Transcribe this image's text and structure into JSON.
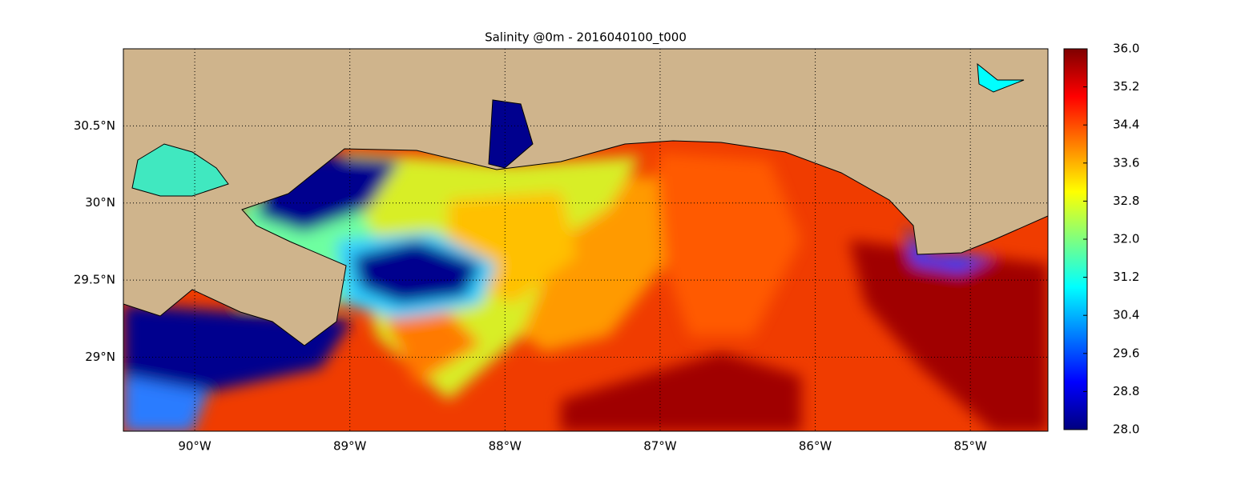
{
  "chart_data": {
    "type": "map",
    "title": "Salinity @0m - 2016040100_t000",
    "xlim": [
      -90.46,
      -84.5
    ],
    "ylim": [
      28.52,
      31.0
    ],
    "xticks": [
      {
        "value": -90,
        "label": "90°W"
      },
      {
        "value": -89,
        "label": "89°W"
      },
      {
        "value": -88,
        "label": "88°W"
      },
      {
        "value": -87,
        "label": "87°W"
      },
      {
        "value": -86,
        "label": "86°W"
      },
      {
        "value": -85,
        "label": "85°W"
      }
    ],
    "yticks": [
      {
        "value": 29,
        "label": "29°N"
      },
      {
        "value": 29.5,
        "label": "29.5°N"
      },
      {
        "value": 30,
        "label": "30°N"
      },
      {
        "value": 30.5,
        "label": "30.5°N"
      }
    ],
    "grid": true,
    "colorbar": {
      "colormap": "jet",
      "lim": [
        28,
        36
      ],
      "ticks": [
        {
          "value": 28,
          "label": "28.0"
        },
        {
          "value": 28.8,
          "label": "28.8"
        },
        {
          "value": 29.6,
          "label": "29.6"
        },
        {
          "value": 30.4,
          "label": "30.4"
        },
        {
          "value": 31.2,
          "label": "31.2"
        },
        {
          "value": 32,
          "label": "32.0"
        },
        {
          "value": 32.8,
          "label": "32.8"
        },
        {
          "value": 33.6,
          "label": "33.6"
        },
        {
          "value": 34.4,
          "label": "34.4"
        },
        {
          "value": 35.2,
          "label": "35.2"
        },
        {
          "value": 36,
          "label": "36.0"
        }
      ]
    }
  }
}
